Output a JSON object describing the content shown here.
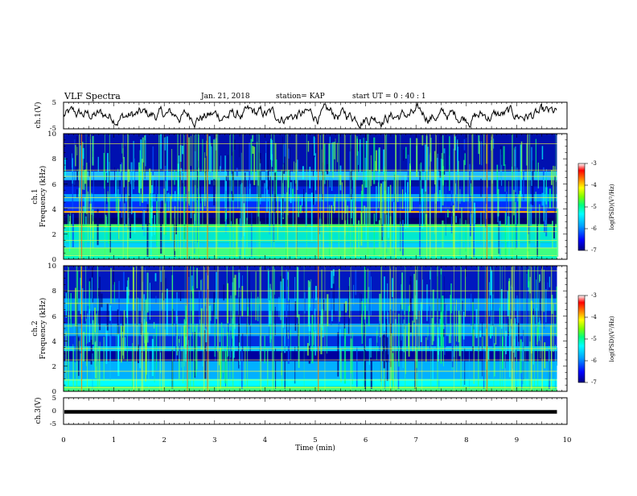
{
  "header": {
    "title": "VLF Spectra",
    "date": "Jan. 21, 2018",
    "station": "station= KAP",
    "start_ut": "start  UT =   0 : 40 : 1"
  },
  "chart_data": [
    {
      "type": "line",
      "panel": "ch1-waveform",
      "ylabel": "ch.1(V)",
      "ylim": [
        -5,
        5
      ],
      "yticks": [
        "5",
        "-5"
      ],
      "xlim": [
        0,
        10
      ],
      "x_end": 9.8,
      "grid": false
    },
    {
      "type": "heatmap",
      "panel": "ch1-spectrogram",
      "ylabel_top": "ch.1",
      "ylabel": "Frequency (kHz)",
      "ylim": [
        0,
        10
      ],
      "yticks": [
        "0",
        "2",
        "4",
        "6",
        "8",
        "10"
      ],
      "xlim": [
        0,
        10
      ],
      "x_end": 9.8,
      "colorbar": {
        "label": "log(PSD)(V²/Hz)",
        "range": [
          -7,
          -3
        ],
        "ticks": [
          "-3",
          "-4",
          "-5",
          "-6",
          "-7"
        ]
      }
    },
    {
      "type": "heatmap",
      "panel": "ch2-spectrogram",
      "ylabel_top": "ch.2",
      "ylabel": "Frequency (kHz)",
      "ylim": [
        0,
        10
      ],
      "yticks": [
        "0",
        "2",
        "4",
        "6",
        "8",
        "10"
      ],
      "xlim": [
        0,
        10
      ],
      "x_end": 9.8,
      "colorbar": {
        "label": "log(PSD)(V²/Hz)",
        "range": [
          -7,
          -3
        ],
        "ticks": [
          "-3",
          "-4",
          "-5",
          "-6",
          "-7"
        ]
      }
    },
    {
      "type": "line",
      "panel": "ch3-waveform",
      "ylabel": "ch.3(V)",
      "ylim": [
        -5,
        5
      ],
      "yticks": [
        "5",
        "0",
        "-5"
      ],
      "xlim": [
        0,
        10
      ],
      "x_end": 9.8,
      "constant_value": -0.3,
      "xlabel": "Time (min)",
      "xticks": [
        "0",
        "1",
        "2",
        "3",
        "4",
        "5",
        "6",
        "7",
        "8",
        "9",
        "10"
      ]
    }
  ],
  "colors": {
    "colormap": [
      "#000080",
      "#0000ff",
      "#00a0ff",
      "#00ffff",
      "#00ff80",
      "#80ff00",
      "#ffff00",
      "#ff8000",
      "#ff0000",
      "#ffffff"
    ]
  }
}
